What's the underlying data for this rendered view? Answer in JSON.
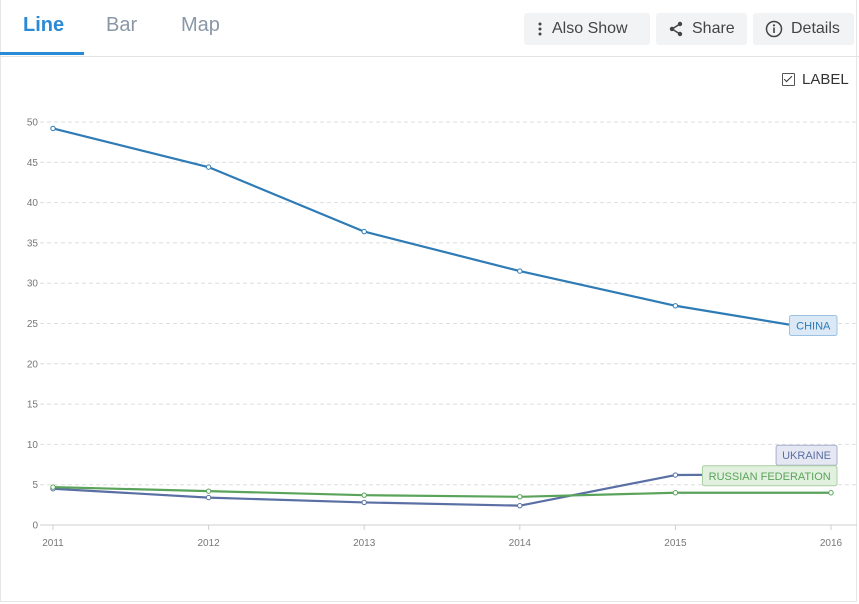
{
  "tabs": [
    {
      "label": "Line",
      "active": true
    },
    {
      "label": "Bar",
      "active": false
    },
    {
      "label": "Map",
      "active": false
    }
  ],
  "toolbar": {
    "also_show_label": "Also Show",
    "share_label": "Share",
    "details_label": "Details"
  },
  "label_toggle": {
    "label": "LABEL",
    "checked": true
  },
  "chart_data": {
    "type": "line",
    "x": [
      2011,
      2012,
      2013,
      2014,
      2015,
      2016
    ],
    "ylim": [
      0,
      50
    ],
    "yticks": [
      0,
      5,
      10,
      15,
      20,
      25,
      30,
      35,
      40,
      45,
      50
    ],
    "grid": true,
    "series": [
      {
        "name": "CHINA",
        "color": "#2e7bb5",
        "label_bg": "#dbe9f6",
        "label_border": "#9cc1e2",
        "values": [
          49.2,
          44.4,
          36.4,
          31.5,
          27.2,
          24.0
        ]
      },
      {
        "name": "UKRAINE",
        "color": "#5a6fa3",
        "label_bg": "#e5e7f2",
        "label_border": "#a7aecd",
        "values": [
          4.5,
          3.4,
          2.8,
          2.4,
          6.2,
          6.3
        ]
      },
      {
        "name": "RUSSIAN FEDERATION",
        "color": "#5aa35a",
        "label_bg": "#e2f0df",
        "label_border": "#a9cfa2",
        "values": [
          4.7,
          4.2,
          3.7,
          3.5,
          4.0,
          4.0
        ]
      }
    ]
  }
}
